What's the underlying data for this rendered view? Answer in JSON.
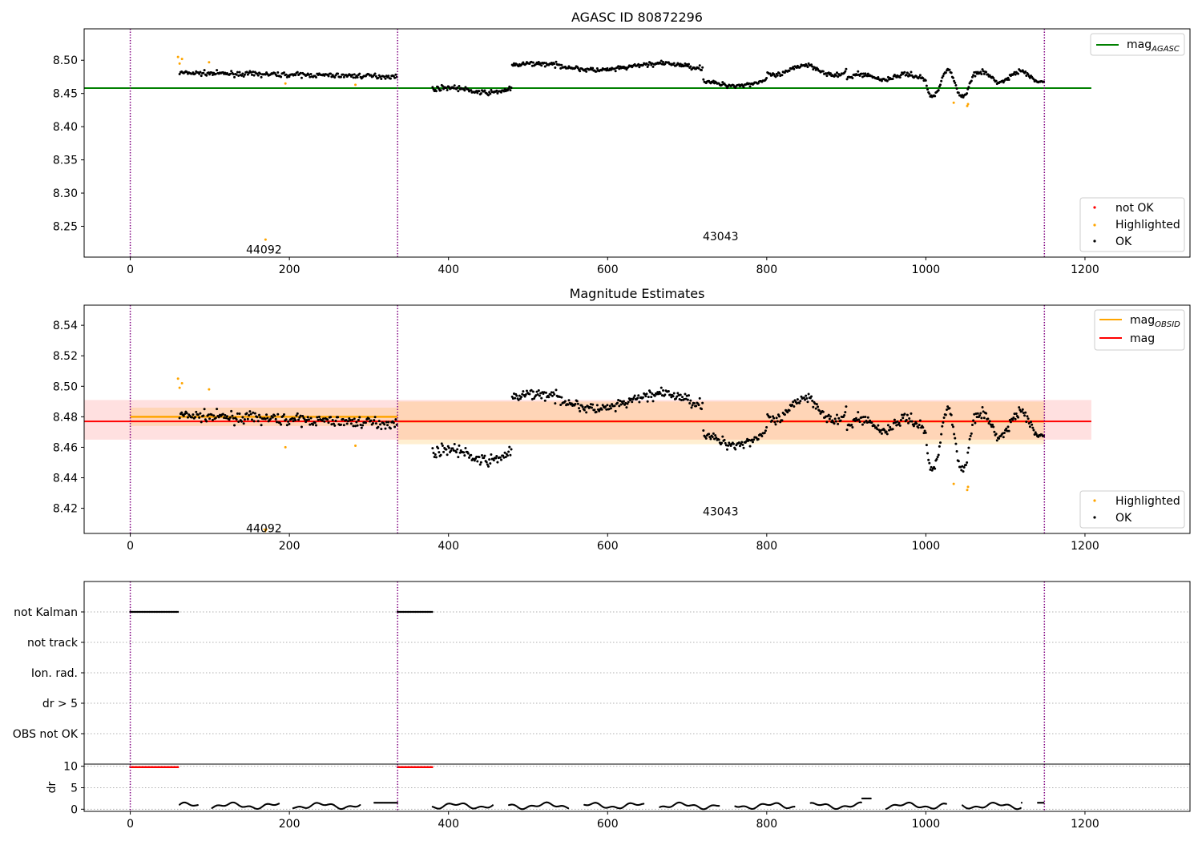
{
  "chart_data": [
    {
      "type": "scatter",
      "title": "AGASC ID 80872296",
      "xlim": [
        -58,
        1332
      ],
      "ylim": [
        8.2036,
        8.5473
      ],
      "yticks": [
        "8.25",
        "8.30",
        "8.35",
        "8.40",
        "8.45",
        "8.50"
      ],
      "ytick_values": [
        8.25,
        8.3,
        8.35,
        8.4,
        8.45,
        8.5
      ],
      "xticks": [
        "0",
        "200",
        "400",
        "600",
        "800",
        "1000",
        "1200"
      ],
      "xtick_values": [
        0,
        200,
        400,
        600,
        800,
        1000,
        1200
      ],
      "vlines": [
        0,
        336,
        1149
      ],
      "obsid_labels": [
        {
          "text": "44092",
          "x": 168,
          "y": 8.215
        },
        {
          "text": "43043",
          "x": 742,
          "y": 8.235
        }
      ],
      "hline": {
        "name": "mag",
        "subscript": "AGASC",
        "y": 8.458,
        "x": [
          -58,
          1208
        ],
        "color": "#008000"
      },
      "legend_lines": [
        {
          "name": "mag",
          "subscript": "AGASC",
          "color": "#008000"
        }
      ],
      "legend_points": [
        {
          "name": "not OK",
          "color": "#ff0000"
        },
        {
          "name": "Highlighted",
          "color": "#ffa500"
        },
        {
          "name": "OK",
          "color": "#000000"
        }
      ],
      "highlighted_points": [
        [
          60,
          8.505
        ],
        [
          62,
          8.495
        ],
        [
          65,
          8.502
        ],
        [
          99,
          8.497
        ],
        [
          170,
          8.23
        ],
        [
          195,
          8.465
        ],
        [
          283,
          8.463
        ],
        [
          1035,
          8.436
        ],
        [
          1052,
          8.431
        ],
        [
          1053,
          8.434
        ]
      ]
    },
    {
      "type": "scatter",
      "title": "Magnitude Estimates",
      "xlim": [
        -58,
        1332
      ],
      "ylim": [
        8.4035,
        8.5532
      ],
      "yticks": [
        "8.42",
        "8.44",
        "8.46",
        "8.48",
        "8.50",
        "8.52",
        "8.54"
      ],
      "ytick_values": [
        8.42,
        8.44,
        8.46,
        8.48,
        8.5,
        8.52,
        8.54
      ],
      "xticks": [
        "0",
        "200",
        "400",
        "600",
        "800",
        "1000",
        "1200"
      ],
      "xtick_values": [
        0,
        200,
        400,
        600,
        800,
        1000,
        1200
      ],
      "vlines": [
        0,
        336,
        1149
      ],
      "obsid_labels": [
        {
          "text": "44092",
          "x": 168,
          "y": 8.407
        },
        {
          "text": "43043",
          "x": 742,
          "y": 8.418
        }
      ],
      "mag_line": {
        "name": "mag",
        "y": 8.477,
        "band": [
          8.465,
          8.491
        ],
        "x": [
          -58,
          1208
        ],
        "color": "#ff0000"
      },
      "obsid_segments": [
        {
          "x": [
            0,
            336
          ],
          "y": 8.48,
          "band": [
            8.474,
            8.486
          ]
        },
        {
          "x": [
            336,
            1149
          ],
          "y": 8.477,
          "band": [
            8.462,
            8.49
          ]
        }
      ],
      "legend_lines": [
        {
          "name": "mag",
          "subscript": "OBSID",
          "color": "#ffa500"
        },
        {
          "name": "mag",
          "color": "#ff0000"
        }
      ],
      "legend_points": [
        {
          "name": "Highlighted",
          "color": "#ffa500"
        },
        {
          "name": "OK",
          "color": "#000000"
        }
      ],
      "highlighted_points": [
        [
          60,
          8.505
        ],
        [
          62,
          8.499
        ],
        [
          65,
          8.502
        ],
        [
          99,
          8.498
        ],
        [
          195,
          8.46
        ],
        [
          283,
          8.461
        ],
        [
          1035,
          8.436
        ],
        [
          1052,
          8.432
        ],
        [
          1053,
          8.434
        ]
      ],
      "offscale_marker": {
        "x": 170
      }
    },
    {
      "type": "scatter",
      "title": "",
      "xlim": [
        -58,
        1332
      ],
      "categories": [
        "not Kalman",
        "not track",
        "Ion. rad.",
        "dr > 5",
        "OBS not OK"
      ],
      "flag_ranges": {
        "not Kalman": [
          [
            0,
            60
          ],
          [
            336,
            380
          ]
        ]
      },
      "xticks": [
        "0",
        "200",
        "400",
        "600",
        "800",
        "1000",
        "1200"
      ],
      "xtick_values": [
        0,
        200,
        400,
        600,
        800,
        1000,
        1200
      ],
      "vlines": [
        0,
        336,
        1149
      ],
      "dr_panel": {
        "ylabel": "dr",
        "yticks": [
          "0",
          "5",
          "10"
        ],
        "ytick_values": [
          0,
          5,
          10
        ],
        "ylim": [
          -0.5,
          10.5
        ],
        "high_ranges": [
          [
            0,
            60
          ],
          [
            336,
            380
          ]
        ],
        "high_value": 9.8,
        "gap_segment": {
          "x": [
            920,
            945
          ],
          "y": 2.5
        }
      }
    }
  ]
}
